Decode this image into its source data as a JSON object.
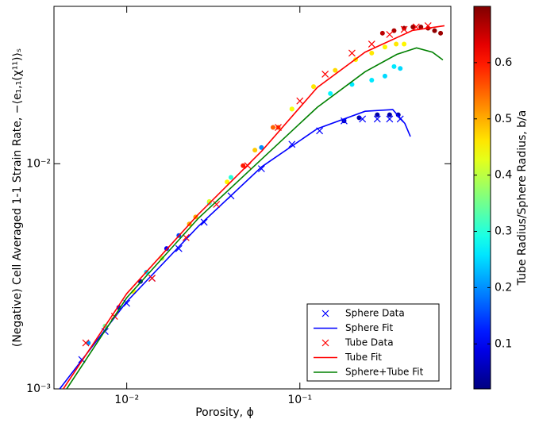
{
  "chart_data": {
    "type": "scatter",
    "x_label": "Porosity, ϕ",
    "y_label": "(Negative) Cell Averaged 1-1 Strain Rate, −⟨e₁,₁(χ¹¹)⟩ₛ",
    "x_log": true,
    "y_log": true,
    "xlim": [
      0.0038,
      0.745
    ],
    "ylim": [
      0.001,
      0.05
    ],
    "xticks": [
      {
        "value": 0.01,
        "label": "10⁻²"
      },
      {
        "value": 0.1,
        "label": "10⁻¹"
      }
    ],
    "yticks": [
      {
        "value": 0.001,
        "label": "10⁻³"
      },
      {
        "value": 0.01,
        "label": "10⁻²"
      }
    ],
    "legend": "lower right",
    "colorbar": {
      "label": "Tube Radius/Sphere Radius, b/a",
      "clim": [
        0.02,
        0.7
      ],
      "ticks": [
        0.1,
        0.2,
        0.3,
        0.4,
        0.5,
        0.6
      ],
      "colormap": "jet"
    },
    "points": {
      "x": [
        0.006,
        0.0075,
        0.009,
        0.011,
        0.013,
        0.016,
        0.02,
        0.025,
        0.03,
        0.038,
        0.047,
        0.06,
        0.075,
        0.09,
        0.012,
        0.017,
        0.023,
        0.03,
        0.04,
        0.055,
        0.07,
        0.09,
        0.12,
        0.16,
        0.21,
        0.26,
        0.31,
        0.36,
        0.4,
        0.15,
        0.2,
        0.26,
        0.31,
        0.35,
        0.38,
        0.3,
        0.35,
        0.4,
        0.45,
        0.5,
        0.55,
        0.6,
        0.65,
        0.18,
        0.22,
        0.28,
        0.33,
        0.37
      ],
      "y": [
        0.0016,
        0.0019,
        0.0023,
        0.0027,
        0.0033,
        0.0038,
        0.0048,
        0.0058,
        0.0067,
        0.0083,
        0.0098,
        0.0118,
        0.0145,
        0.0175,
        0.003,
        0.0042,
        0.0054,
        0.0068,
        0.0087,
        0.0115,
        0.0145,
        0.0175,
        0.022,
        0.026,
        0.029,
        0.031,
        0.033,
        0.034,
        0.034,
        0.0205,
        0.0225,
        0.0235,
        0.0245,
        0.027,
        0.0265,
        0.038,
        0.039,
        0.04,
        0.0405,
        0.0405,
        0.04,
        0.039,
        0.038,
        0.0155,
        0.016,
        0.0165,
        0.0165,
        0.0165
      ],
      "c": [
        0.2,
        0.35,
        0.1,
        0.45,
        0.25,
        0.4,
        0.15,
        0.5,
        0.3,
        0.45,
        0.6,
        0.2,
        0.55,
        0.35,
        0.05,
        0.1,
        0.5,
        0.42,
        0.3,
        0.48,
        0.55,
        0.44,
        0.46,
        0.47,
        0.45,
        0.46,
        0.45,
        0.46,
        0.45,
        0.27,
        0.26,
        0.26,
        0.25,
        0.26,
        0.25,
        0.66,
        0.67,
        0.68,
        0.68,
        0.68,
        0.68,
        0.69,
        0.68,
        0.05,
        0.05,
        0.05,
        0.05,
        0.05
      ]
    },
    "series": [
      {
        "name": "Sphere Data",
        "kind": "marker",
        "color": "#0000ff",
        "x": [
          0.0055,
          0.0075,
          0.01,
          0.014,
          0.02,
          0.028,
          0.04,
          0.06,
          0.09,
          0.13,
          0.18,
          0.23,
          0.28,
          0.33,
          0.38
        ],
        "y": [
          0.00135,
          0.0018,
          0.0024,
          0.0031,
          0.0042,
          0.0055,
          0.0072,
          0.0095,
          0.0122,
          0.014,
          0.0155,
          0.0158,
          0.0158,
          0.0158,
          0.0158
        ]
      },
      {
        "name": "Sphere Fit",
        "kind": "line",
        "color": "#0000ff",
        "x": [
          0.0041,
          0.01,
          0.0259,
          0.0603,
          0.126,
          0.238,
          0.344,
          0.404,
          0.435
        ],
        "y": [
          0.001,
          0.00244,
          0.00527,
          0.0097,
          0.0143,
          0.0171,
          0.0174,
          0.0151,
          0.0132
        ]
      },
      {
        "name": "Tube Data",
        "kind": "marker",
        "color": "#ff0000",
        "x": [
          0.0058,
          0.0085,
          0.014,
          0.022,
          0.033,
          0.05,
          0.075,
          0.1,
          0.14,
          0.2,
          0.26,
          0.33,
          0.4,
          0.47,
          0.55
        ],
        "y": [
          0.0016,
          0.0021,
          0.0031,
          0.0047,
          0.0066,
          0.0098,
          0.0145,
          0.019,
          0.025,
          0.031,
          0.034,
          0.0375,
          0.0395,
          0.0405,
          0.041
        ]
      },
      {
        "name": "Tube Fit",
        "kind": "line",
        "color": "#ff0000",
        "x": [
          0.0043,
          0.01,
          0.0259,
          0.0603,
          0.126,
          0.238,
          0.448,
          0.684
        ],
        "y": [
          0.001,
          0.00265,
          0.00596,
          0.0114,
          0.0218,
          0.0313,
          0.0391,
          0.041
        ]
      },
      {
        "name": "Sphere+Tube Fit",
        "kind": "line",
        "color": "#008000",
        "x": [
          0.0045,
          0.01,
          0.0259,
          0.0603,
          0.126,
          0.238,
          0.363,
          0.472,
          0.583,
          0.67
        ],
        "y": [
          0.001,
          0.00254,
          0.00572,
          0.0105,
          0.0178,
          0.0256,
          0.0306,
          0.0327,
          0.0313,
          0.0289
        ]
      }
    ]
  }
}
